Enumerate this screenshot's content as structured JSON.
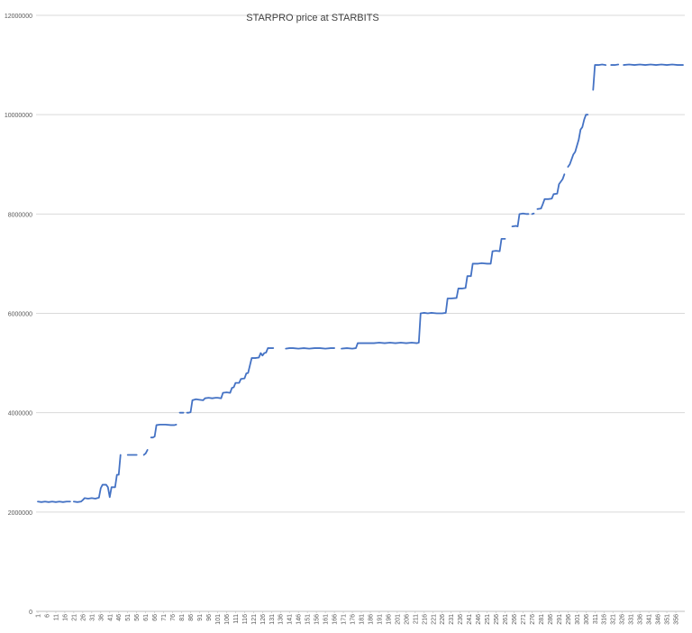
{
  "chart_data": {
    "type": "line",
    "title": "STARPRO price at STARBITS",
    "xlabel": "",
    "ylabel": "",
    "ylim": [
      0,
      12000000
    ],
    "yticks": [
      0,
      2000000,
      4000000,
      6000000,
      8000000,
      10000000,
      12000000
    ],
    "ytick_labels": [
      "0",
      "2000000",
      "4000000",
      "6000000",
      "8000000",
      "10000000",
      "12000000"
    ],
    "x_range": [
      1,
      360
    ],
    "xticks": [
      1,
      6,
      11,
      16,
      21,
      26,
      31,
      36,
      41,
      46,
      51,
      56,
      61,
      66,
      71,
      76,
      81,
      86,
      91,
      96,
      101,
      106,
      111,
      116,
      121,
      126,
      131,
      136,
      141,
      146,
      151,
      156,
      161,
      166,
      171,
      176,
      181,
      186,
      191,
      196,
      201,
      206,
      211,
      216,
      221,
      226,
      231,
      236,
      241,
      246,
      251,
      256,
      261,
      266,
      271,
      276,
      281,
      286,
      291,
      296,
      301,
      306,
      311,
      316,
      321,
      326,
      331,
      336,
      341,
      346,
      351,
      356
    ],
    "grid": "horizontal",
    "legend": "none",
    "line_color": "#4472C4",
    "series": [
      {
        "segments": [
          [
            [
              1,
              2210000
            ],
            [
              3,
              2200000
            ],
            [
              5,
              2210000
            ],
            [
              7,
              2200000
            ],
            [
              9,
              2210000
            ],
            [
              11,
              2200000
            ],
            [
              13,
              2210000
            ],
            [
              15,
              2200000
            ],
            [
              17,
              2210000
            ],
            [
              19,
              2210000
            ]
          ],
          [
            [
              21,
              2210000
            ],
            [
              23,
              2200000
            ],
            [
              25,
              2210000
            ],
            [
              26,
              2240000
            ],
            [
              27,
              2280000
            ],
            [
              29,
              2270000
            ],
            [
              31,
              2280000
            ],
            [
              33,
              2270000
            ],
            [
              35,
              2290000
            ],
            [
              36,
              2480000
            ],
            [
              37,
              2550000
            ],
            [
              39,
              2550000
            ],
            [
              40,
              2500000
            ],
            [
              41,
              2300000
            ],
            [
              42,
              2500000
            ],
            [
              44,
              2500000
            ],
            [
              45,
              2750000
            ],
            [
              46,
              2750000
            ],
            [
              47,
              3150000
            ]
          ],
          [
            [
              51,
              3150000
            ],
            [
              53,
              3150000
            ],
            [
              56,
              3150000
            ]
          ],
          [
            [
              60,
              3150000
            ],
            [
              61,
              3180000
            ],
            [
              62,
              3250000
            ]
          ],
          [
            [
              64,
              3500000
            ],
            [
              65,
              3500000
            ],
            [
              66,
              3520000
            ],
            [
              67,
              3750000
            ],
            [
              69,
              3760000
            ],
            [
              72,
              3760000
            ],
            [
              75,
              3750000
            ],
            [
              77,
              3750000
            ],
            [
              78,
              3760000
            ]
          ],
          [
            [
              80,
              4000000
            ],
            [
              82,
              4000000
            ]
          ],
          [
            [
              84,
              4000000
            ],
            [
              85,
              4000000
            ],
            [
              86,
              4010000
            ],
            [
              87,
              4250000
            ],
            [
              89,
              4270000
            ],
            [
              91,
              4260000
            ],
            [
              93,
              4250000
            ],
            [
              94,
              4290000
            ],
            [
              96,
              4300000
            ],
            [
              98,
              4290000
            ],
            [
              100,
              4300000
            ],
            [
              101,
              4300000
            ],
            [
              103,
              4290000
            ],
            [
              104,
              4400000
            ],
            [
              106,
              4410000
            ],
            [
              108,
              4400000
            ],
            [
              109,
              4500000
            ],
            [
              110,
              4510000
            ],
            [
              111,
              4600000
            ],
            [
              113,
              4600000
            ],
            [
              114,
              4680000
            ],
            [
              116,
              4690000
            ],
            [
              117,
              4790000
            ],
            [
              118,
              4800000
            ],
            [
              119,
              4950000
            ],
            [
              120,
              5100000
            ],
            [
              122,
              5100000
            ],
            [
              124,
              5110000
            ],
            [
              125,
              5200000
            ],
            [
              126,
              5150000
            ],
            [
              127,
              5200000
            ],
            [
              128,
              5210000
            ],
            [
              129,
              5300000
            ],
            [
              132,
              5300000
            ]
          ],
          [
            [
              139,
              5290000
            ],
            [
              141,
              5300000
            ],
            [
              143,
              5300000
            ],
            [
              146,
              5290000
            ],
            [
              149,
              5300000
            ],
            [
              152,
              5290000
            ],
            [
              155,
              5300000
            ],
            [
              158,
              5300000
            ],
            [
              161,
              5290000
            ],
            [
              164,
              5300000
            ],
            [
              166,
              5300000
            ]
          ],
          [
            [
              170,
              5290000
            ],
            [
              173,
              5300000
            ],
            [
              176,
              5290000
            ],
            [
              178,
              5300000
            ],
            [
              179,
              5400000
            ],
            [
              182,
              5400000
            ],
            [
              185,
              5400000
            ],
            [
              188,
              5400000
            ],
            [
              191,
              5410000
            ],
            [
              194,
              5400000
            ],
            [
              197,
              5410000
            ],
            [
              200,
              5400000
            ],
            [
              203,
              5410000
            ],
            [
              206,
              5400000
            ],
            [
              209,
              5410000
            ],
            [
              212,
              5400000
            ],
            [
              213,
              5410000
            ],
            [
              214,
              6000000
            ],
            [
              216,
              6010000
            ],
            [
              218,
              6000000
            ],
            [
              220,
              6010000
            ],
            [
              223,
              6000000
            ],
            [
              226,
              6000000
            ],
            [
              228,
              6010000
            ],
            [
              229,
              6300000
            ],
            [
              231,
              6300000
            ],
            [
              234,
              6310000
            ],
            [
              235,
              6500000
            ],
            [
              237,
              6500000
            ],
            [
              239,
              6510000
            ],
            [
              240,
              6750000
            ],
            [
              242,
              6750000
            ],
            [
              243,
              7000000
            ],
            [
              246,
              7000000
            ],
            [
              248,
              7010000
            ],
            [
              251,
              7000000
            ],
            [
              253,
              7000000
            ],
            [
              254,
              7250000
            ],
            [
              256,
              7260000
            ],
            [
              258,
              7250000
            ],
            [
              259,
              7500000
            ],
            [
              261,
              7500000
            ]
          ],
          [
            [
              265,
              7750000
            ],
            [
              267,
              7760000
            ],
            [
              268,
              7750000
            ],
            [
              269,
              8000000
            ],
            [
              271,
              8010000
            ],
            [
              273,
              8000000
            ],
            [
              274,
              8000000
            ]
          ],
          [
            [
              276,
              8000000
            ],
            [
              277,
              8010000
            ]
          ],
          [
            [
              279,
              8100000
            ],
            [
              281,
              8110000
            ],
            [
              282,
              8200000
            ],
            [
              283,
              8300000
            ],
            [
              285,
              8300000
            ],
            [
              287,
              8310000
            ],
            [
              288,
              8400000
            ],
            [
              290,
              8410000
            ],
            [
              291,
              8600000
            ],
            [
              293,
              8700000
            ],
            [
              294,
              8800000
            ]
          ],
          [
            [
              296,
              8950000
            ],
            [
              297,
              9000000
            ],
            [
              299,
              9200000
            ],
            [
              300,
              9250000
            ],
            [
              302,
              9500000
            ],
            [
              303,
              9700000
            ],
            [
              304,
              9750000
            ],
            [
              305,
              9900000
            ],
            [
              306,
              10000000
            ],
            [
              307,
              10000000
            ]
          ],
          [
            [
              310,
              10500000
            ],
            [
              311,
              11000000
            ],
            [
              313,
              11000000
            ],
            [
              315,
              11010000
            ],
            [
              317,
              11000000
            ]
          ],
          [
            [
              320,
              11000000
            ],
            [
              322,
              11000000
            ],
            [
              324,
              11010000
            ]
          ],
          [
            [
              327,
              11000000
            ],
            [
              330,
              11010000
            ],
            [
              333,
              11000000
            ],
            [
              336,
              11010000
            ],
            [
              339,
              11000000
            ],
            [
              342,
              11010000
            ],
            [
              345,
              11000000
            ],
            [
              348,
              11010000
            ],
            [
              351,
              11000000
            ],
            [
              354,
              11010000
            ],
            [
              357,
              11000000
            ],
            [
              360,
              11000000
            ]
          ]
        ]
      }
    ]
  }
}
